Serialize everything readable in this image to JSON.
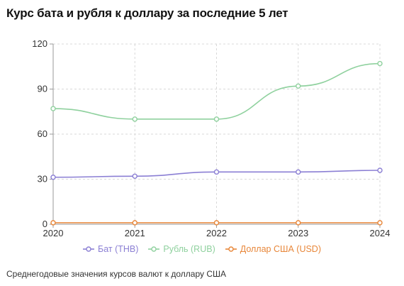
{
  "title": "Курс бата и рубля к доллару за последние 5 лет",
  "caption": "Среднегодовые значения курсов валют к доллару США",
  "colors": {
    "grid": "#d9d9d9",
    "axis": "#999999",
    "tick_text": "#333333"
  },
  "chart_data": {
    "type": "line",
    "x": [
      "2020",
      "2021",
      "2022",
      "2023",
      "2024"
    ],
    "ylim": [
      0,
      120
    ],
    "yticks": [
      0,
      30,
      60,
      90,
      120
    ],
    "grid": true,
    "legend_placement": "bottom-center",
    "series": [
      {
        "name": "Бат (THB)",
        "color": "#8b7fd4",
        "values": [
          31.3,
          32.0,
          34.8,
          34.8,
          35.9
        ]
      },
      {
        "name": "Рубль (RUB)",
        "color": "#8fd19e",
        "values": [
          77.0,
          70.0,
          70.0,
          92.0,
          107.0
        ]
      },
      {
        "name": "Доллар США (USD)",
        "color": "#e8873a",
        "values": [
          1,
          1,
          1,
          1,
          1
        ]
      }
    ]
  }
}
